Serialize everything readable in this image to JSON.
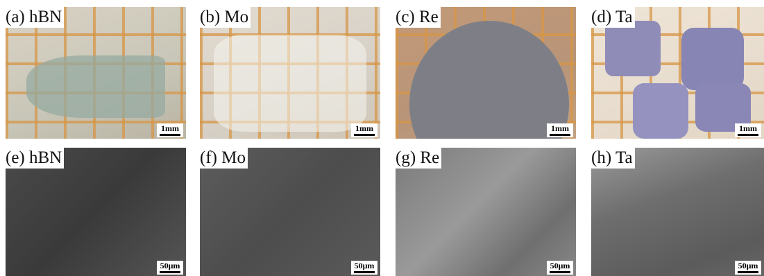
{
  "panels": [
    {
      "label": "(a) hBN",
      "scale": "1mm"
    },
    {
      "label": "(b) Mo",
      "scale": "1mm"
    },
    {
      "label": "(c) Re",
      "scale": "1mm"
    },
    {
      "label": "(d) Ta",
      "scale": "1mm"
    },
    {
      "label": "(e) hBN",
      "scale": "50μm"
    },
    {
      "label": "(f) Mo",
      "scale": "50μm"
    },
    {
      "label": "(g) Re",
      "scale": "50μm"
    },
    {
      "label": "(h) Ta",
      "scale": "50μm"
    }
  ]
}
